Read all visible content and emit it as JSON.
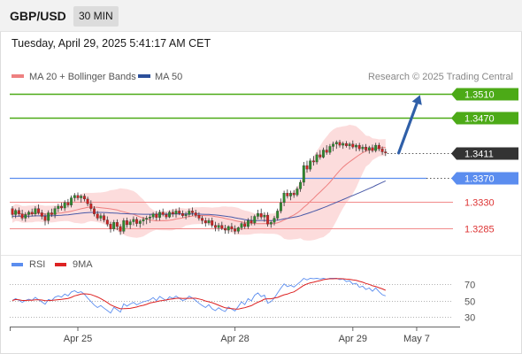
{
  "header": {
    "symbol": "GBP/USD",
    "timeframe": "30 MIN",
    "datetime": "Tuesday, April 29, 2025 5:41:17 AM CET"
  },
  "legend": {
    "ma20_label": "MA 20 + Bollinger Bands",
    "ma50_label": "MA 50",
    "credit": "Research © 2025 Trading Central",
    "rsi_label": "RSI",
    "ma9_label": "9MA"
  },
  "colors": {
    "bull": "#2d8a2d",
    "bear": "#cc2222",
    "ma20": "#ee8080",
    "band_fill": "#fbd6d6",
    "ma50": "#4a5aa8",
    "resistance": "#4caa17",
    "support": "#5b8def",
    "level_red": "#f28a8a",
    "arrow": "#2f5fa8",
    "current": "#333333",
    "rsi": "#5b8def",
    "ma9": "#dd2222"
  },
  "chart_data": [
    {
      "type": "candlestick",
      "title": "GBP/USD",
      "timeframe": "30 MIN",
      "ylim": [
        1.323,
        1.3525
      ],
      "x_tick_labels": [
        "Apr 25",
        "Apr 28",
        "Apr 29",
        "May 7"
      ],
      "x_tick_index": [
        20,
        68,
        104,
        123.5
      ],
      "levels": [
        {
          "value": 1.351,
          "label": "1.3510",
          "kind": "resistance"
        },
        {
          "value": 1.347,
          "label": "1.3470",
          "kind": "resistance"
        },
        {
          "value": 1.3411,
          "label": "1.3411",
          "kind": "current"
        },
        {
          "value": 1.337,
          "label": "1.3370",
          "kind": "pivot"
        },
        {
          "value": 1.333,
          "label": "1.3330",
          "kind": "support"
        },
        {
          "value": 1.3285,
          "label": "1.3285",
          "kind": "support"
        }
      ],
      "projection": {
        "from": [
          118,
          1.3411
        ],
        "to": [
          124.5,
          1.3508
        ]
      },
      "series": [
        {
          "name": "MA 20 + Bollinger Bands"
        },
        {
          "name": "MA 50"
        }
      ],
      "candles": [
        [
          1.3318,
          1.3322,
          1.3302,
          1.3308
        ],
        [
          1.3308,
          1.3318,
          1.3302,
          1.3315
        ],
        [
          1.3315,
          1.332,
          1.3305,
          1.3309
        ],
        [
          1.3309,
          1.3316,
          1.3298,
          1.3302
        ],
        [
          1.3302,
          1.3312,
          1.3296,
          1.3308
        ],
        [
          1.3308,
          1.3315,
          1.3302,
          1.3312
        ],
        [
          1.3312,
          1.3318,
          1.3305,
          1.3309
        ],
        [
          1.3309,
          1.3322,
          1.3305,
          1.3318
        ],
        [
          1.3318,
          1.3325,
          1.3308,
          1.3311
        ],
        [
          1.3311,
          1.3316,
          1.33,
          1.3305
        ],
        [
          1.3305,
          1.331,
          1.329,
          1.3298
        ],
        [
          1.3298,
          1.3315,
          1.3292,
          1.3311
        ],
        [
          1.3311,
          1.3318,
          1.3304,
          1.3308
        ],
        [
          1.3308,
          1.3322,
          1.3302,
          1.3318
        ],
        [
          1.3318,
          1.3326,
          1.3312,
          1.3322
        ],
        [
          1.3322,
          1.3328,
          1.3315,
          1.3319
        ],
        [
          1.3319,
          1.3332,
          1.3314,
          1.3328
        ],
        [
          1.3328,
          1.3334,
          1.332,
          1.3324
        ],
        [
          1.3324,
          1.334,
          1.332,
          1.3336
        ],
        [
          1.3336,
          1.3344,
          1.333,
          1.334
        ],
        [
          1.334,
          1.3345,
          1.3332,
          1.3336
        ],
        [
          1.3336,
          1.3342,
          1.3328,
          1.3339
        ],
        [
          1.3339,
          1.3343,
          1.333,
          1.3334
        ],
        [
          1.3334,
          1.3338,
          1.3322,
          1.3326
        ],
        [
          1.3326,
          1.3332,
          1.3314,
          1.3318
        ],
        [
          1.3318,
          1.3322,
          1.3305,
          1.3309
        ],
        [
          1.3309,
          1.3314,
          1.3298,
          1.3302
        ],
        [
          1.3302,
          1.331,
          1.3297,
          1.3306
        ],
        [
          1.3306,
          1.331,
          1.3295,
          1.3299
        ],
        [
          1.3299,
          1.3305,
          1.3288,
          1.3292
        ],
        [
          1.3292,
          1.3296,
          1.3278,
          1.3284
        ],
        [
          1.3284,
          1.3299,
          1.328,
          1.3295
        ],
        [
          1.3295,
          1.33,
          1.3282,
          1.3288
        ],
        [
          1.3288,
          1.3292,
          1.3274,
          1.328
        ],
        [
          1.328,
          1.3302,
          1.3276,
          1.3298
        ],
        [
          1.3298,
          1.3303,
          1.3286,
          1.3291
        ],
        [
          1.3291,
          1.33,
          1.3284,
          1.3296
        ],
        [
          1.3296,
          1.3305,
          1.329,
          1.33
        ],
        [
          1.33,
          1.3304,
          1.3288,
          1.3293
        ],
        [
          1.3293,
          1.33,
          1.3286,
          1.3297
        ],
        [
          1.3297,
          1.3304,
          1.329,
          1.33
        ],
        [
          1.33,
          1.3306,
          1.3292,
          1.3302
        ],
        [
          1.3302,
          1.3308,
          1.3294,
          1.3304
        ],
        [
          1.3304,
          1.3312,
          1.33,
          1.3309
        ],
        [
          1.3309,
          1.3314,
          1.3298,
          1.3303
        ],
        [
          1.3303,
          1.3316,
          1.3298,
          1.3312
        ],
        [
          1.3312,
          1.3318,
          1.3305,
          1.3308
        ],
        [
          1.3308,
          1.3312,
          1.33,
          1.3304
        ],
        [
          1.3304,
          1.3315,
          1.3302,
          1.3312
        ],
        [
          1.3312,
          1.3317,
          1.3304,
          1.3309
        ],
        [
          1.3309,
          1.3318,
          1.3303,
          1.3314
        ],
        [
          1.3314,
          1.332,
          1.3307,
          1.331
        ],
        [
          1.331,
          1.3315,
          1.3303,
          1.3306
        ],
        [
          1.3306,
          1.3313,
          1.33,
          1.3308
        ],
        [
          1.3308,
          1.3318,
          1.3304,
          1.3314
        ],
        [
          1.3314,
          1.332,
          1.3306,
          1.3311
        ],
        [
          1.3311,
          1.3316,
          1.3303,
          1.3307
        ],
        [
          1.3307,
          1.3312,
          1.3298,
          1.3302
        ],
        [
          1.3302,
          1.3306,
          1.3292,
          1.3298
        ],
        [
          1.3298,
          1.3303,
          1.3288,
          1.3294
        ],
        [
          1.3294,
          1.3302,
          1.329,
          1.3298
        ],
        [
          1.3298,
          1.3303,
          1.3286,
          1.329
        ],
        [
          1.329,
          1.3296,
          1.328,
          1.3286
        ],
        [
          1.3286,
          1.3294,
          1.328,
          1.329
        ],
        [
          1.329,
          1.3296,
          1.3282,
          1.3285
        ],
        [
          1.3285,
          1.3291,
          1.3276,
          1.3282
        ],
        [
          1.3282,
          1.329,
          1.3276,
          1.3288
        ],
        [
          1.3288,
          1.3294,
          1.3279,
          1.3284
        ],
        [
          1.3284,
          1.329,
          1.3275,
          1.328
        ],
        [
          1.328,
          1.3288,
          1.3276,
          1.3286
        ],
        [
          1.3286,
          1.3296,
          1.3282,
          1.3293
        ],
        [
          1.3293,
          1.3298,
          1.3284,
          1.3288
        ],
        [
          1.3288,
          1.3302,
          1.3284,
          1.3298
        ],
        [
          1.3298,
          1.3306,
          1.329,
          1.3294
        ],
        [
          1.3294,
          1.3308,
          1.329,
          1.3305
        ],
        [
          1.3305,
          1.3316,
          1.33,
          1.331
        ],
        [
          1.331,
          1.3318,
          1.33,
          1.3304
        ],
        [
          1.3304,
          1.3312,
          1.3296,
          1.3307
        ],
        [
          1.3307,
          1.3312,
          1.3288,
          1.3292
        ],
        [
          1.3292,
          1.3298,
          1.3286,
          1.3295
        ],
        [
          1.3295,
          1.3306,
          1.329,
          1.3302
        ],
        [
          1.3302,
          1.3318,
          1.3298,
          1.3314
        ],
        [
          1.3314,
          1.3335,
          1.331,
          1.3328
        ],
        [
          1.3328,
          1.3348,
          1.3322,
          1.3344
        ],
        [
          1.3344,
          1.335,
          1.3335,
          1.3339
        ],
        [
          1.3339,
          1.3348,
          1.3332,
          1.3344
        ],
        [
          1.3344,
          1.3349,
          1.3336,
          1.3341
        ],
        [
          1.3341,
          1.3355,
          1.3338,
          1.3351
        ],
        [
          1.3351,
          1.3366,
          1.3346,
          1.3362
        ],
        [
          1.3362,
          1.3396,
          1.3356,
          1.339
        ],
        [
          1.339,
          1.3398,
          1.3378,
          1.3384
        ],
        [
          1.3384,
          1.3402,
          1.338,
          1.3398
        ],
        [
          1.3398,
          1.3406,
          1.339,
          1.3396
        ],
        [
          1.3396,
          1.3412,
          1.3392,
          1.3408
        ],
        [
          1.3408,
          1.3416,
          1.34,
          1.3404
        ],
        [
          1.3404,
          1.342,
          1.3402,
          1.3416
        ],
        [
          1.3416,
          1.3424,
          1.3408,
          1.3412
        ],
        [
          1.3412,
          1.3426,
          1.3408,
          1.3422
        ],
        [
          1.3422,
          1.343,
          1.3414,
          1.3426
        ],
        [
          1.3426,
          1.3432,
          1.3418,
          1.3429
        ],
        [
          1.3429,
          1.3433,
          1.342,
          1.3424
        ],
        [
          1.3424,
          1.343,
          1.3418,
          1.3427
        ],
        [
          1.3427,
          1.3431,
          1.342,
          1.3423
        ],
        [
          1.3423,
          1.3429,
          1.3417,
          1.3426
        ],
        [
          1.3426,
          1.3432,
          1.3418,
          1.3421
        ],
        [
          1.3421,
          1.3427,
          1.3414,
          1.3424
        ],
        [
          1.3424,
          1.3428,
          1.3414,
          1.3418
        ],
        [
          1.3418,
          1.3425,
          1.3412,
          1.3421
        ],
        [
          1.3421,
          1.3426,
          1.3413,
          1.3416
        ],
        [
          1.3416,
          1.3423,
          1.341,
          1.342
        ],
        [
          1.342,
          1.3425,
          1.3412,
          1.3415
        ],
        [
          1.3415,
          1.3428,
          1.3412,
          1.3424
        ],
        [
          1.3424,
          1.3428,
          1.3414,
          1.3418
        ],
        [
          1.3418,
          1.3422,
          1.3408,
          1.3413
        ],
        [
          1.3413,
          1.3418,
          1.3406,
          1.3411
        ]
      ]
    },
    {
      "type": "line",
      "title": "RSI",
      "ylim": [
        20,
        80
      ],
      "yticks": [
        30,
        50,
        70
      ],
      "series": [
        {
          "name": "RSI"
        },
        {
          "name": "9MA"
        }
      ]
    }
  ]
}
